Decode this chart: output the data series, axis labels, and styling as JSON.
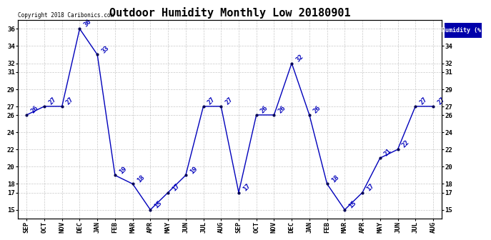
{
  "title": "Outdoor Humidity Monthly Low 20180901",
  "legend_label": "Humidity (%)",
  "copyright_text": "Copyright 2018 Caribonics.com",
  "x_labels": [
    "SEP",
    "OCT",
    "NOV",
    "DEC",
    "JAN",
    "FEB",
    "MAR",
    "APR",
    "MAY",
    "JUN",
    "JUL",
    "AUG",
    "SEP",
    "OCT",
    "NOV",
    "DEC",
    "JAN",
    "FEB",
    "MAR",
    "APR",
    "MAY",
    "JUN",
    "JUL",
    "AUG"
  ],
  "y_values": [
    26,
    27,
    27,
    36,
    33,
    19,
    18,
    15,
    17,
    19,
    27,
    27,
    17,
    26,
    26,
    32,
    26,
    18,
    15,
    17,
    21,
    22,
    27,
    27
  ],
  "ylim": [
    14,
    37
  ],
  "yticks": [
    15,
    17,
    18,
    20,
    22,
    24,
    26,
    27,
    29,
    31,
    32,
    34,
    36
  ],
  "line_color": "#0000bb",
  "marker_color": "#000055",
  "label_color": "#0000bb",
  "bg_color": "#ffffff",
  "grid_color": "#bbbbbb",
  "legend_bg": "#0000aa",
  "legend_fg": "#ffffff",
  "title_fontsize": 11,
  "axis_fontsize": 6.5,
  "label_fontsize": 6.5,
  "copyright_fontsize": 5.5
}
